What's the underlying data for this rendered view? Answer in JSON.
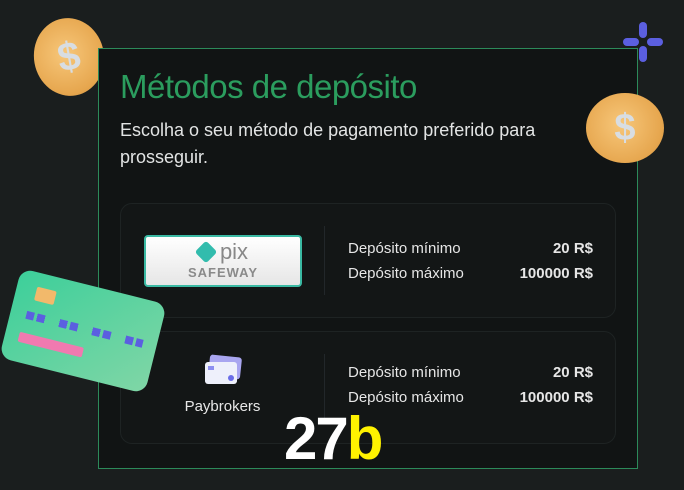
{
  "header": {
    "title": "Métodos de depósito",
    "subtitle": "Escolha o seu método de pagamento preferido para prosseguir."
  },
  "methods": [
    {
      "name": "PIX SAFEWAY",
      "logo_text": "pix",
      "logo_sub": "SAFEWAY",
      "min_label": "Depósito mínimo",
      "min_value": "20 R$",
      "max_label": "Depósito máximo",
      "max_value": "100000 R$"
    },
    {
      "name": "Paybrokers",
      "min_label": "Depósito mínimo",
      "min_value": "20 R$",
      "max_label": "Depósito máximo",
      "max_value": "100000 R$"
    }
  ],
  "brand": {
    "part1": "27",
    "part2": "b"
  },
  "colors": {
    "accent": "#2b9d5e",
    "brand_yellow": "#fff200",
    "panel_border": "#2c8a5a"
  }
}
